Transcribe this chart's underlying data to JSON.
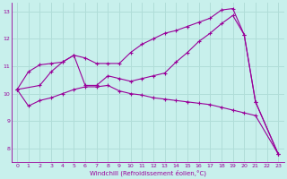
{
  "xlabel": "Windchill (Refroidissement éolien,°C)",
  "bg_color": "#c8f0ec",
  "line_color": "#990099",
  "grid_color": "#b0ddd8",
  "xlim": [
    -0.5,
    23.5
  ],
  "ylim": [
    7.5,
    13.3
  ],
  "yticks": [
    8,
    9,
    10,
    11,
    12,
    13
  ],
  "xticks": [
    0,
    1,
    2,
    3,
    4,
    5,
    6,
    7,
    8,
    9,
    10,
    11,
    12,
    13,
    14,
    15,
    16,
    17,
    18,
    19,
    20,
    21,
    22,
    23
  ],
  "series1_x": [
    0,
    1,
    2,
    3,
    4,
    5,
    6,
    7,
    8,
    9,
    10,
    11,
    12,
    13,
    14,
    15,
    16,
    17,
    18,
    19,
    20,
    21,
    23
  ],
  "series1_y": [
    10.15,
    10.8,
    11.05,
    11.1,
    11.15,
    11.4,
    11.3,
    11.1,
    11.1,
    11.1,
    11.5,
    11.8,
    12.0,
    12.2,
    12.3,
    12.45,
    12.6,
    12.75,
    13.05,
    13.1,
    12.15,
    9.7,
    7.8
  ],
  "series2_x": [
    0,
    2,
    3,
    4,
    5,
    6,
    7,
    8,
    9,
    10,
    11,
    12,
    13,
    14,
    15,
    16,
    17,
    18,
    19,
    20,
    21,
    23
  ],
  "series2_y": [
    10.15,
    10.3,
    10.8,
    11.15,
    11.4,
    10.3,
    10.3,
    10.65,
    10.55,
    10.45,
    10.55,
    10.65,
    10.75,
    11.15,
    11.5,
    11.9,
    12.2,
    12.55,
    12.85,
    12.15,
    9.7,
    7.8
  ],
  "series3_x": [
    0,
    1,
    2,
    3,
    4,
    5,
    6,
    7,
    8,
    9,
    10,
    11,
    12,
    13,
    14,
    15,
    16,
    17,
    18,
    19,
    20,
    21,
    23
  ],
  "series3_y": [
    10.15,
    9.55,
    9.75,
    9.85,
    10.0,
    10.15,
    10.25,
    10.25,
    10.3,
    10.1,
    10.0,
    9.95,
    9.85,
    9.8,
    9.75,
    9.7,
    9.65,
    9.6,
    9.5,
    9.4,
    9.3,
    9.2,
    7.8
  ]
}
